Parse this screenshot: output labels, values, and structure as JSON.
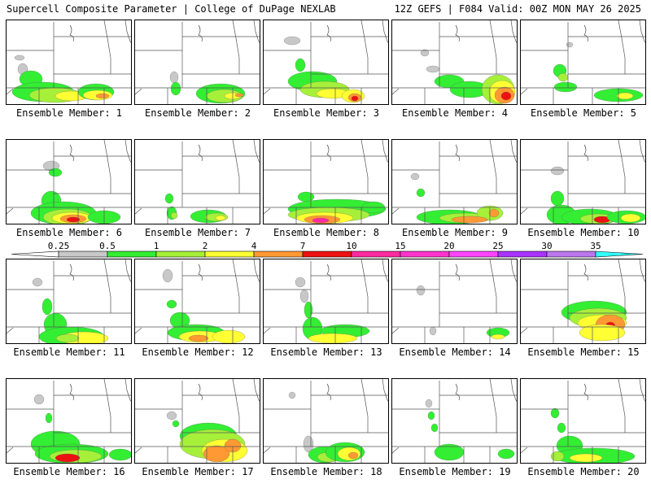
{
  "header": {
    "left": "Supercell Composite Parameter | College of DuPage NEXLAB",
    "right": "12Z GEFS | F084 Valid: 00Z MON MAY 26 2025"
  },
  "colorbar": {
    "labels": [
      "0.25",
      "0.5",
      "1",
      "2",
      "4",
      "7",
      "10",
      "15",
      "20",
      "25",
      "30",
      "35"
    ],
    "colors": [
      "#c8c8c8",
      "#33ee33",
      "#a6f03a",
      "#ffff33",
      "#ff9933",
      "#ee1111",
      "#ff2aa0",
      "#ff33cc",
      "#ff44ff",
      "#aa33ff",
      "#bb77ee",
      "#33ffff"
    ]
  },
  "members": [
    {
      "label": "Ensemble Member: 1"
    },
    {
      "label": "Ensemble Member: 2"
    },
    {
      "label": "Ensemble Member: 3"
    },
    {
      "label": "Ensemble Member: 4"
    },
    {
      "label": "Ensemble Member: 5"
    },
    {
      "label": "Ensemble Member: 6"
    },
    {
      "label": "Ensemble Member: 7"
    },
    {
      "label": "Ensemble Member: 8"
    },
    {
      "label": "Ensemble Member: 9"
    },
    {
      "label": "Ensemble Member: 10"
    },
    {
      "label": "Ensemble Member: 11"
    },
    {
      "label": "Ensemble Member: 12"
    },
    {
      "label": "Ensemble Member: 13"
    },
    {
      "label": "Ensemble Member: 14"
    },
    {
      "label": "Ensemble Member: 15"
    },
    {
      "label": "Ensemble Member: 16"
    },
    {
      "label": "Ensemble Member: 17"
    },
    {
      "label": "Ensemble Member: 18"
    },
    {
      "label": "Ensemble Member: 19"
    },
    {
      "label": "Ensemble Member: 20"
    }
  ]
}
